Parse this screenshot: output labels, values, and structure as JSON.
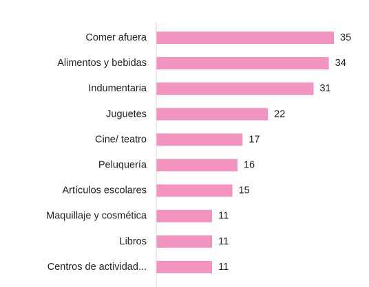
{
  "chart_data": {
    "type": "bar",
    "orientation": "horizontal",
    "categories": [
      "Comer afuera",
      "Alimentos y bebidas",
      "Indumentaria",
      "Juguetes",
      "Cine/ teatro",
      "Peluquería",
      "Artículos escolares",
      "Maquillaje y cosmética",
      "Libros",
      "Centros de actividad..."
    ],
    "values": [
      35,
      34,
      31,
      22,
      17,
      16,
      15,
      11,
      11,
      11
    ],
    "title": "",
    "xlabel": "",
    "ylabel": "",
    "xlim": [
      0,
      35
    ],
    "grid": false,
    "legend": "none",
    "data_labels": true,
    "colors": {
      "bar": "#f294bf",
      "axis": "#d9d9d9",
      "text": "#222222"
    }
  }
}
